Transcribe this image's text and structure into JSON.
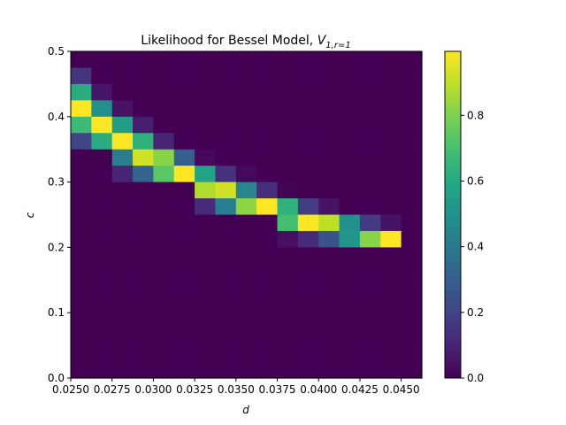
{
  "chart_data": {
    "type": "heatmap",
    "title": {
      "main": "Likelihood for Bessel Model, ",
      "symbol": "V",
      "subscript": "1,r=1"
    },
    "xlabel": "d",
    "ylabel": "c",
    "xlim": [
      0.025,
      0.04625
    ],
    "ylim": [
      0.0,
      0.5
    ],
    "x_ticks": [
      {
        "value": 0.025,
        "label": "0.0250"
      },
      {
        "value": 0.0275,
        "label": "0.0275"
      },
      {
        "value": 0.03,
        "label": "0.0300"
      },
      {
        "value": 0.0325,
        "label": "0.0325"
      },
      {
        "value": 0.035,
        "label": "0.0350"
      },
      {
        "value": 0.0375,
        "label": "0.0375"
      },
      {
        "value": 0.04,
        "label": "0.0400"
      },
      {
        "value": 0.0425,
        "label": "0.0425"
      },
      {
        "value": 0.045,
        "label": "0.0450"
      }
    ],
    "y_ticks": [
      {
        "value": 0.0,
        "label": "0.0"
      },
      {
        "value": 0.1,
        "label": "0.1"
      },
      {
        "value": 0.2,
        "label": "0.2"
      },
      {
        "value": 0.3,
        "label": "0.3"
      },
      {
        "value": 0.4,
        "label": "0.4"
      },
      {
        "value": 0.5,
        "label": "0.5"
      }
    ],
    "colorbar": {
      "range": [
        0.0,
        1.0
      ],
      "ticks": [
        {
          "value": 0.0,
          "label": "0.0"
        },
        {
          "value": 0.2,
          "label": "0.2"
        },
        {
          "value": 0.4,
          "label": "0.4"
        },
        {
          "value": 0.6,
          "label": "0.6"
        },
        {
          "value": 0.8,
          "label": "0.8"
        }
      ],
      "colormap": "viridis"
    },
    "x_edges": [
      0.025,
      0.02625,
      0.0275,
      0.02875,
      0.03,
      0.03125,
      0.0325,
      0.03375,
      0.035,
      0.03625,
      0.0375,
      0.03875,
      0.04,
      0.04125,
      0.0425,
      0.04375,
      0.045,
      0.04625
    ],
    "y_edges": [
      0.0,
      0.025,
      0.05,
      0.075,
      0.1,
      0.125,
      0.15,
      0.175,
      0.2,
      0.225,
      0.25,
      0.275,
      0.3,
      0.325,
      0.35,
      0.375,
      0.4,
      0.425,
      0.45,
      0.475,
      0.5
    ],
    "values_top_to_bottom": [
      [
        0,
        0,
        0,
        0,
        0,
        0,
        0,
        0,
        0,
        0,
        0,
        0,
        0,
        0,
        0,
        0,
        0
      ],
      [
        0.15,
        0,
        0,
        0,
        0,
        0,
        0,
        0,
        0,
        0,
        0,
        0,
        0,
        0,
        0,
        0,
        0
      ],
      [
        0.62,
        0.06,
        0,
        0,
        0,
        0,
        0,
        0,
        0,
        0,
        0,
        0,
        0,
        0,
        0,
        0,
        0
      ],
      [
        1.0,
        0.5,
        0.05,
        0,
        0,
        0,
        0,
        0,
        0,
        0,
        0,
        0,
        0,
        0,
        0,
        0,
        0
      ],
      [
        0.68,
        1.0,
        0.55,
        0.08,
        0,
        0,
        0,
        0,
        0,
        0,
        0,
        0,
        0,
        0,
        0,
        0,
        0
      ],
      [
        0.2,
        0.62,
        1.0,
        0.64,
        0.1,
        0,
        0,
        0,
        0,
        0,
        0,
        0,
        0,
        0,
        0,
        0,
        0
      ],
      [
        0,
        0,
        0.42,
        0.93,
        0.82,
        0.3,
        0.02,
        0,
        0,
        0,
        0,
        0,
        0,
        0,
        0,
        0,
        0
      ],
      [
        0,
        0,
        0.1,
        0.32,
        0.74,
        1.0,
        0.58,
        0.14,
        0.02,
        0,
        0,
        0,
        0,
        0,
        0,
        0,
        0
      ],
      [
        0,
        0,
        0,
        0,
        0,
        0,
        0.88,
        0.93,
        0.45,
        0.13,
        0.01,
        0,
        0,
        0,
        0,
        0,
        0
      ],
      [
        0,
        0,
        0,
        0,
        0,
        0,
        0.12,
        0.42,
        0.83,
        1.0,
        0.64,
        0.18,
        0.05,
        0,
        0,
        0,
        0
      ],
      [
        0,
        0,
        0,
        0,
        0,
        0,
        0,
        0,
        0,
        0,
        0.7,
        1.0,
        0.9,
        0.5,
        0.17,
        0.05,
        0
      ],
      [
        0,
        0,
        0,
        0,
        0,
        0,
        0,
        0,
        0,
        0,
        0.04,
        0.12,
        0.26,
        0.52,
        0.82,
        1.0,
        0
      ],
      [
        0,
        0,
        0,
        0,
        0,
        0,
        0,
        0,
        0,
        0,
        0,
        0,
        0,
        0,
        0,
        0,
        0
      ],
      [
        0,
        0,
        0,
        0,
        0,
        0,
        0,
        0,
        0,
        0,
        0,
        0,
        0,
        0,
        0,
        0,
        0
      ],
      [
        0,
        0,
        0,
        0,
        0,
        0,
        0,
        0,
        0,
        0,
        0,
        0,
        0,
        0,
        0,
        0,
        0
      ],
      [
        0,
        0,
        0,
        0,
        0,
        0,
        0,
        0,
        0,
        0,
        0,
        0,
        0,
        0,
        0,
        0,
        0
      ],
      [
        0,
        0,
        0,
        0,
        0,
        0,
        0,
        0,
        0,
        0,
        0,
        0,
        0,
        0,
        0,
        0,
        0
      ],
      [
        0,
        0,
        0,
        0,
        0,
        0,
        0,
        0,
        0,
        0,
        0,
        0,
        0,
        0,
        0,
        0,
        0
      ],
      [
        0,
        0,
        0,
        0,
        0,
        0,
        0,
        0,
        0,
        0,
        0,
        0,
        0,
        0,
        0,
        0,
        0
      ],
      [
        0,
        0,
        0,
        0,
        0,
        0,
        0,
        0,
        0,
        0,
        0,
        0,
        0,
        0,
        0,
        0,
        0
      ]
    ]
  }
}
